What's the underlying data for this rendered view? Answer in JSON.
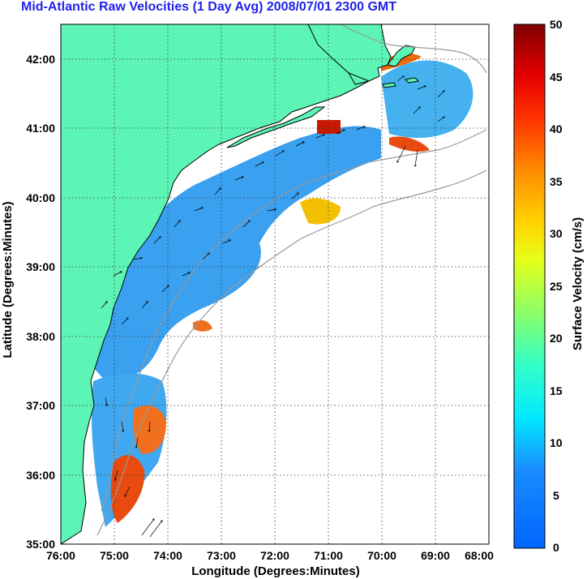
{
  "title": "Mid-Atlantic Raw Velocities (1 Day Avg) 2008/07/01 2300 GMT",
  "map": {
    "xlabel": "Longitude (Degrees:Minutes)",
    "ylabel": "Latitude (Degrees:Minutes)",
    "x_ticks": [
      "76:00",
      "75:00",
      "74:00",
      "73:00",
      "72:00",
      "71:00",
      "70:00",
      "69:00",
      "68:00"
    ],
    "y_ticks": [
      "42:00",
      "41:00",
      "40:00",
      "39:00",
      "38:00",
      "37:00",
      "36:00",
      "35:00"
    ],
    "lon_range": [
      -76,
      -68
    ],
    "lat_range": [
      35,
      42.5
    ],
    "land_color": "#5cf5b5",
    "coast_color": "#000000",
    "bathy_color": "#999999"
  },
  "colorbar": {
    "label": "Surface Velocity (cm/s)",
    "ticks": [
      "50",
      "45",
      "40",
      "35",
      "30",
      "25",
      "20",
      "15",
      "10",
      "5",
      "0"
    ],
    "range": [
      0,
      50
    ]
  }
}
